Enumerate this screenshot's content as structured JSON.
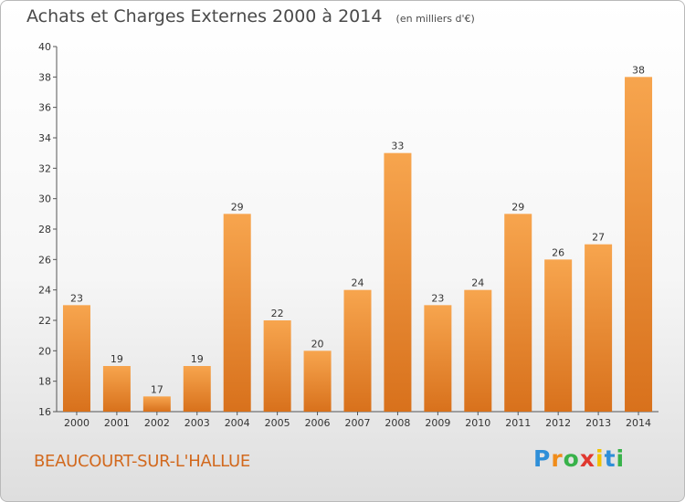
{
  "title": "Achats et Charges Externes 2000 à 2014",
  "unit_note": "(en milliers d'€)",
  "commune": "BEAUCOURT-SUR-L'HALLUE",
  "logo": {
    "text": "Proxiti",
    "letters": [
      "P",
      "r",
      "o",
      "x",
      "i",
      "t",
      "i"
    ]
  },
  "colors": {
    "bar_light": "#f7a54e",
    "bar_dark": "#d8711c",
    "text": "#4a4a4a",
    "commune": "#d2691e"
  },
  "chart_data": {
    "type": "bar",
    "title": "Achats et Charges Externes 2000 à 2014",
    "subtitle": "(en milliers d'€)",
    "xlabel": "",
    "ylabel": "",
    "categories": [
      "2000",
      "2001",
      "2002",
      "2003",
      "2004",
      "2005",
      "2006",
      "2007",
      "2008",
      "2009",
      "2010",
      "2011",
      "2012",
      "2013",
      "2014"
    ],
    "values": [
      23,
      19,
      17,
      19,
      29,
      22,
      20,
      24,
      33,
      23,
      24,
      29,
      26,
      27,
      38
    ],
    "ylim": [
      16,
      40
    ],
    "yticks": [
      16,
      18,
      20,
      22,
      24,
      26,
      28,
      30,
      32,
      34,
      36,
      38,
      40
    ],
    "grid": "none",
    "legend": "none"
  }
}
